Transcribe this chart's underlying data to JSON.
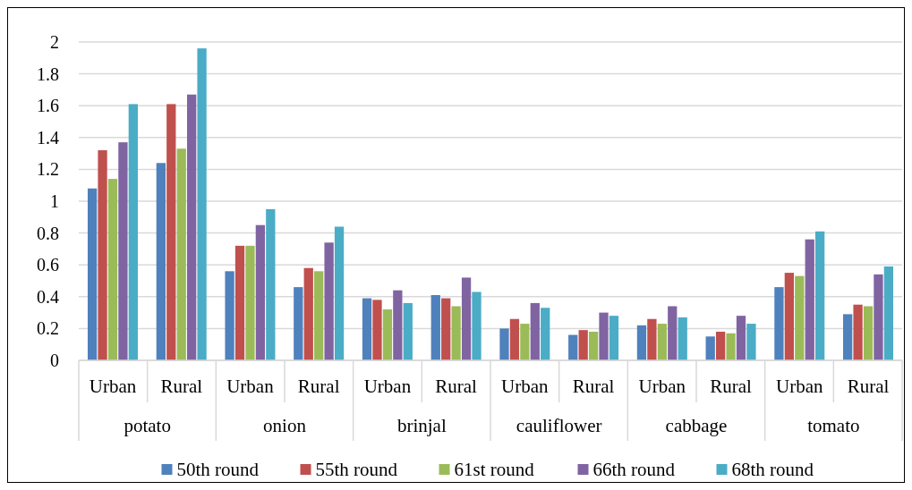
{
  "chart_data": {
    "type": "bar",
    "categories": [
      "Urban",
      "Rural",
      "Urban",
      "Rural",
      "Urban",
      "Rural",
      "Urban",
      "Rural",
      "Urban",
      "Rural",
      "Urban",
      "Rural"
    ],
    "annotations": [
      "potato",
      "onion",
      "brinjal",
      "cauliflower",
      "cabbage",
      "tomato"
    ],
    "series": [
      {
        "name": "50th round",
        "color": "#4f81bd",
        "values": [
          1.08,
          1.24,
          0.56,
          0.46,
          0.39,
          0.41,
          0.2,
          0.16,
          0.22,
          0.15,
          0.46,
          0.29
        ]
      },
      {
        "name": "55th round",
        "color": "#c0504d",
        "values": [
          1.32,
          1.61,
          0.72,
          0.58,
          0.38,
          0.39,
          0.26,
          0.19,
          0.26,
          0.18,
          0.55,
          0.35
        ]
      },
      {
        "name": "61st round",
        "color": "#9bbb59",
        "values": [
          1.14,
          1.33,
          0.72,
          0.56,
          0.32,
          0.34,
          0.23,
          0.18,
          0.23,
          0.17,
          0.53,
          0.34
        ]
      },
      {
        "name": "66th round",
        "color": "#8064a2",
        "values": [
          1.37,
          1.67,
          0.85,
          0.74,
          0.44,
          0.52,
          0.36,
          0.3,
          0.34,
          0.28,
          0.76,
          0.54
        ]
      },
      {
        "name": "68th round",
        "color": "#4bacc6",
        "values": [
          1.61,
          1.96,
          0.95,
          0.84,
          0.36,
          0.43,
          0.33,
          0.28,
          0.27,
          0.23,
          0.81,
          0.59
        ]
      }
    ],
    "ylim": [
      0,
      2
    ],
    "yticks": [
      0,
      0.2,
      0.4,
      0.6,
      0.8,
      1,
      1.2,
      1.4,
      1.6,
      1.8,
      2
    ],
    "grid": "y",
    "legend": "bottom"
  }
}
